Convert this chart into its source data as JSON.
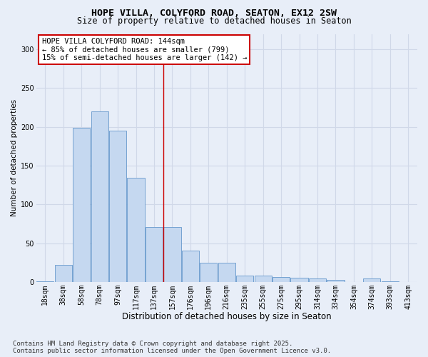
{
  "title": "HOPE VILLA, COLYFORD ROAD, SEATON, EX12 2SW",
  "subtitle": "Size of property relative to detached houses in Seaton",
  "xlabel": "Distribution of detached houses by size in Seaton",
  "ylabel": "Number of detached properties",
  "categories": [
    "18sqm",
    "38sqm",
    "58sqm",
    "78sqm",
    "97sqm",
    "117sqm",
    "137sqm",
    "157sqm",
    "176sqm",
    "196sqm",
    "216sqm",
    "235sqm",
    "255sqm",
    "275sqm",
    "295sqm",
    "314sqm",
    "334sqm",
    "354sqm",
    "374sqm",
    "393sqm",
    "413sqm"
  ],
  "values": [
    1,
    22,
    199,
    220,
    195,
    134,
    71,
    71,
    40,
    25,
    25,
    8,
    8,
    6,
    5,
    4,
    3,
    0,
    4,
    1,
    0
  ],
  "bar_color": "#c5d8f0",
  "bar_edge_color": "#6699cc",
  "vline_color": "#cc0000",
  "annotation_box_text": "HOPE VILLA COLYFORD ROAD: 144sqm\n← 85% of detached houses are smaller (799)\n15% of semi-detached houses are larger (142) →",
  "annotation_box_color": "#ffffff",
  "annotation_box_edge_color": "#cc0000",
  "background_color": "#e8eef8",
  "grid_color": "#d0d8e8",
  "ylim": [
    0,
    320
  ],
  "yticks": [
    0,
    50,
    100,
    150,
    200,
    250,
    300
  ],
  "footnote": "Contains HM Land Registry data © Crown copyright and database right 2025.\nContains public sector information licensed under the Open Government Licence v3.0.",
  "title_fontsize": 9.5,
  "subtitle_fontsize": 8.5,
  "xlabel_fontsize": 8.5,
  "ylabel_fontsize": 7.5,
  "tick_fontsize": 7,
  "annotation_fontsize": 7.5,
  "footnote_fontsize": 6.5,
  "vline_bin_index": 6
}
